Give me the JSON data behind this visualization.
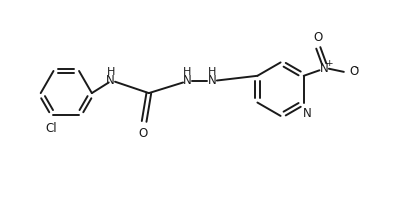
{
  "background_color": "#ffffff",
  "line_color": "#1a1a1a",
  "line_width": 1.4,
  "font_size": 8.5,
  "figsize": [
    3.96,
    1.98
  ],
  "dpi": 100,
  "xlim": [
    0,
    10
  ],
  "ylim": [
    0,
    5
  ]
}
